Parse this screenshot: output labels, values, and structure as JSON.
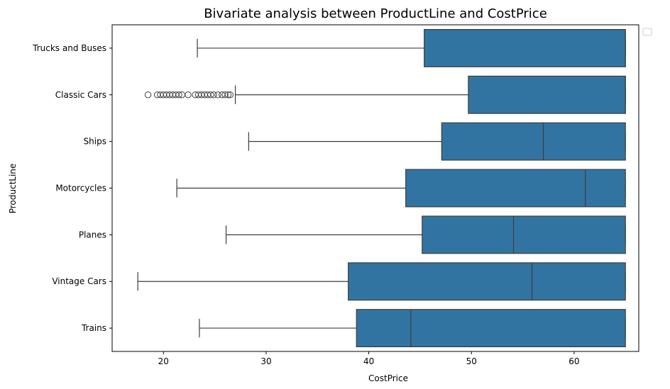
{
  "chart_data": {
    "type": "box",
    "orientation": "horizontal",
    "title": "Bivariate analysis between ProductLine and CostPrice",
    "xlabel": "CostPrice",
    "ylabel": "ProductLine",
    "xlim": [
      15,
      66.3
    ],
    "xticks": [
      20,
      30,
      40,
      50,
      60
    ],
    "grid": false,
    "legend": "upper right, empty",
    "colors": {
      "box_fill": "#3274a1",
      "edge": "#3d3d3d",
      "outlier": "#3d3d3d"
    },
    "categories": [
      "Trucks and Buses",
      "Classic Cars",
      "Ships",
      "Motorcycles",
      "Planes",
      "Vintage Cars",
      "Trains"
    ],
    "boxes": [
      {
        "category": "Trucks and Buses",
        "whisker_low": 23.3,
        "q1": 45.4,
        "median": 65.0,
        "q3": 65.0,
        "whisker_high": 65.0,
        "outliers": []
      },
      {
        "category": "Classic Cars",
        "whisker_low": 27.0,
        "q1": 49.7,
        "median": 65.0,
        "q3": 65.0,
        "whisker_high": 65.0,
        "outliers": [
          18.5,
          19.4,
          19.7,
          20.0,
          20.3,
          20.6,
          20.9,
          21.2,
          21.5,
          21.8,
          22.4,
          23.1,
          23.4,
          23.7,
          24.0,
          24.3,
          24.6,
          24.9,
          25.3,
          25.7,
          26.0,
          26.3,
          26.5
        ]
      },
      {
        "category": "Ships",
        "whisker_low": 28.3,
        "q1": 47.1,
        "median": 57.0,
        "q3": 65.0,
        "whisker_high": 65.0,
        "outliers": []
      },
      {
        "category": "Motorcycles",
        "whisker_low": 21.3,
        "q1": 43.6,
        "median": 61.1,
        "q3": 65.0,
        "whisker_high": 65.0,
        "outliers": []
      },
      {
        "category": "Planes",
        "whisker_low": 26.1,
        "q1": 45.2,
        "median": 54.1,
        "q3": 65.0,
        "whisker_high": 65.0,
        "outliers": []
      },
      {
        "category": "Vintage Cars",
        "whisker_low": 17.5,
        "q1": 38.0,
        "median": 55.9,
        "q3": 65.0,
        "whisker_high": 65.0,
        "outliers": []
      },
      {
        "category": "Trains",
        "whisker_low": 23.5,
        "q1": 38.8,
        "median": 44.1,
        "q3": 65.0,
        "whisker_high": 65.0,
        "outliers": []
      }
    ]
  }
}
